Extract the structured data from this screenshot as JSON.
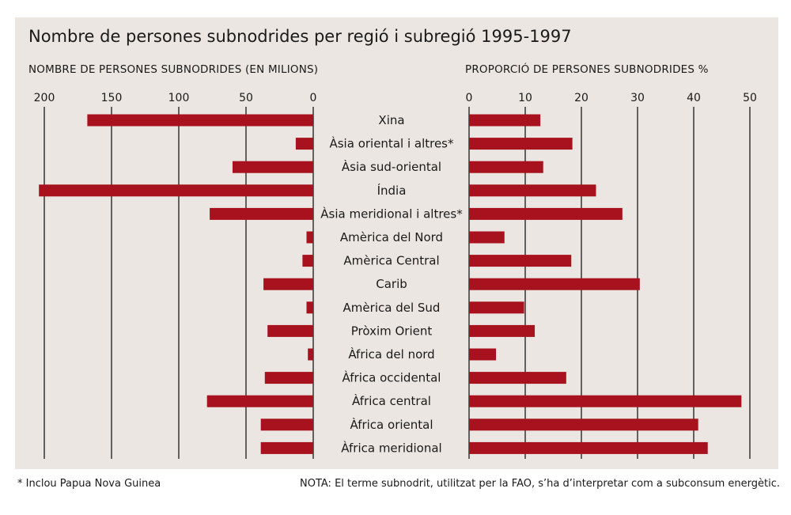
{
  "title": "Nombre de persones subnodrides per regió i subregió  1995-1997",
  "left_label": "NOMBRE DE PERSONES SUBNODRIDES (EN MILIONS)",
  "right_label": "PROPORCIÓ DE PERSONES SUBNODRIDES %",
  "footnote": "* Inclou Papua Nova Guinea",
  "note": "NOTA: El terme subnodrit, utilitzat per la FAO, s’ha d’interpretar com a subconsum energètic.",
  "colors": {
    "bar": "#a8121e",
    "panel": "#ebe6e1",
    "grid": "#1a1a1a"
  },
  "chart_data": {
    "type": "bar",
    "categories": [
      "Xina",
      "Àsia oriental i altres*",
      "Àsia sud-oriental",
      "Índia",
      "Àsia meridional i altres*",
      "Amèrica del Nord",
      "Amèrica Central",
      "Carib",
      "Amèrica del Sud",
      "Pròxim Orient",
      "Àfrica del nord",
      "Àfrica occidental",
      "Àfrica central",
      "Àfrica oriental",
      "Àfrica meridional"
    ],
    "left": {
      "ticks": [
        200,
        150,
        100,
        50,
        0
      ],
      "xlim": [
        200,
        0
      ],
      "values": [
        168,
        13,
        60,
        204,
        77,
        5,
        8,
        37,
        5,
        34,
        4,
        36,
        79,
        39,
        39
      ]
    },
    "right": {
      "ticks": [
        0,
        10,
        20,
        30,
        40,
        50
      ],
      "xlim": [
        0,
        50
      ],
      "values": [
        12.7,
        18.4,
        13.2,
        22.6,
        27.3,
        6.3,
        18.2,
        30.4,
        9.8,
        11.7,
        4.8,
        17.3,
        48.5,
        40.8,
        42.5
      ]
    }
  }
}
